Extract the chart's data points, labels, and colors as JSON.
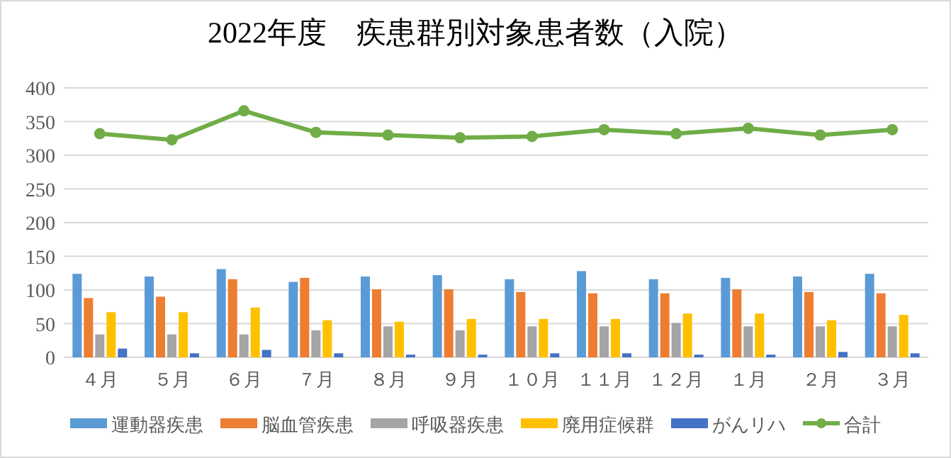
{
  "chart_data": {
    "type": "bar",
    "title": "2022年度　疾患群別対象患者数（入院）",
    "categories": [
      "４月",
      "５月",
      "６月",
      "７月",
      "８月",
      "９月",
      "１０月",
      "１１月",
      "１２月",
      "１月",
      "２月",
      "３月"
    ],
    "series": [
      {
        "name": "運動器疾患",
        "color": "#5b9bd5",
        "values": [
          124,
          120,
          131,
          112,
          120,
          122,
          116,
          128,
          116,
          118,
          120,
          124
        ]
      },
      {
        "name": "脳血管疾患",
        "color": "#ed7d31",
        "values": [
          88,
          90,
          116,
          118,
          101,
          101,
          97,
          95,
          95,
          101,
          97,
          95
        ]
      },
      {
        "name": "呼吸器疾患",
        "color": "#a5a5a5",
        "values": [
          34,
          34,
          34,
          40,
          46,
          40,
          46,
          46,
          51,
          46,
          46,
          46
        ]
      },
      {
        "name": "廃用症候群",
        "color": "#ffc000",
        "values": [
          67,
          67,
          74,
          55,
          53,
          57,
          57,
          57,
          65,
          65,
          55,
          63
        ]
      },
      {
        "name": "がんリハ",
        "color": "#4472c4",
        "values": [
          13,
          6,
          11,
          6,
          4,
          4,
          6,
          6,
          4,
          4,
          8,
          6
        ]
      },
      {
        "name": "合計",
        "color": "#70ad47",
        "type": "line",
        "marker": "circle",
        "values": [
          332,
          323,
          366,
          334,
          330,
          326,
          328,
          338,
          332,
          340,
          330,
          338
        ]
      }
    ],
    "ylim": [
      0,
      400
    ],
    "yticks": [
      0,
      50,
      100,
      150,
      200,
      250,
      300,
      350,
      400
    ],
    "grid": "y",
    "legend": "bottom"
  }
}
